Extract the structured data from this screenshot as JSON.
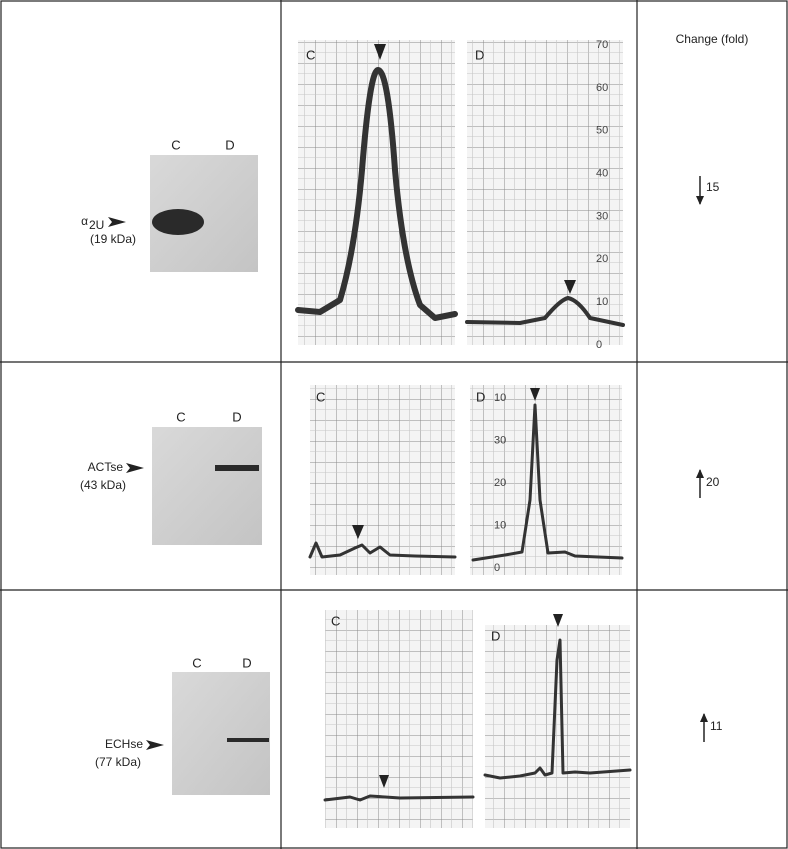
{
  "header": {
    "change_column": "Change (fold)"
  },
  "rows": [
    {
      "protein": "α",
      "protein_subscript": "2U",
      "mass": "(19 kDa)",
      "lanes": [
        "C",
        "D"
      ],
      "traces": [
        {
          "label": "C"
        },
        {
          "label": "D",
          "scale": [
            "70",
            "60",
            "50",
            "40",
            "30",
            "20",
            "10",
            "0"
          ]
        }
      ],
      "change": {
        "value": 15,
        "direction": "down"
      }
    },
    {
      "protein": "ACTse",
      "mass": "(43 kDa)",
      "lanes": [
        "C",
        "D"
      ],
      "traces": [
        {
          "label": "C"
        },
        {
          "label": "D",
          "scale": [
            "10",
            "30",
            "20",
            "10",
            "0"
          ]
        }
      ],
      "change": {
        "value": 20,
        "direction": "up"
      }
    },
    {
      "protein": "ECHse",
      "mass": "(77 kDa)",
      "lanes": [
        "C",
        "D"
      ],
      "traces": [
        {
          "label": "C"
        },
        {
          "label": "D"
        }
      ],
      "change": {
        "value": 11,
        "direction": "up"
      }
    }
  ]
}
